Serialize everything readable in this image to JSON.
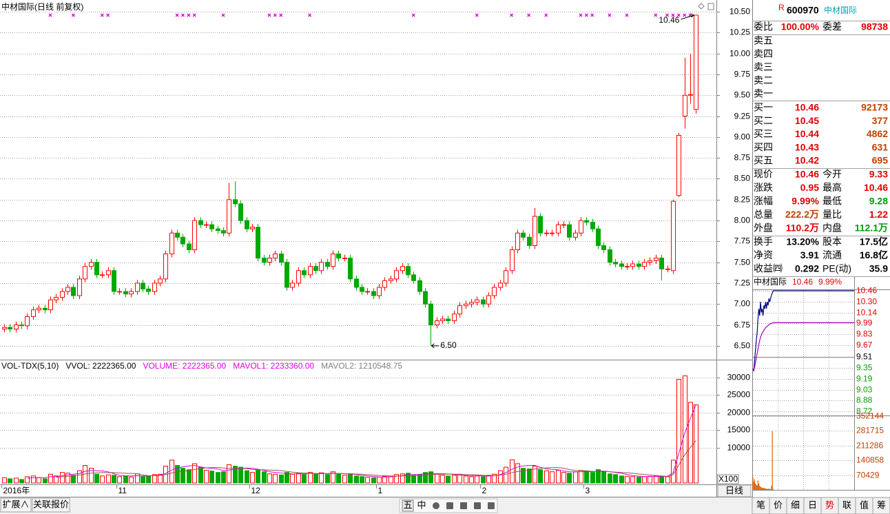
{
  "chart_data": {
    "type": "candlestick",
    "title": "中材国际(日线 前复权)",
    "categories": [
      "2016年",
      null,
      null,
      null,
      null,
      null,
      null,
      null,
      null,
      null,
      null,
      null,
      null,
      null,
      null,
      null,
      null,
      null,
      null,
      null,
      "11",
      null,
      null,
      null,
      null,
      null,
      null,
      null,
      null,
      null,
      null,
      null,
      null,
      null,
      null,
      null,
      null,
      null,
      null,
      null,
      null,
      null,
      null,
      "12",
      null,
      null,
      null,
      null,
      null,
      null,
      null,
      null,
      null,
      null,
      null,
      null,
      null,
      null,
      null,
      null,
      null,
      null,
      null,
      null,
      null,
      "1",
      null,
      null,
      null,
      null,
      null,
      null,
      null,
      null,
      null,
      null,
      null,
      null,
      null,
      null,
      null,
      null,
      null,
      "2",
      null,
      null,
      null,
      null,
      null,
      null,
      null,
      null,
      null,
      null,
      null,
      null,
      null,
      null,
      null,
      null,
      null,
      "3",
      null,
      null,
      null,
      null,
      null,
      null,
      null,
      null,
      null,
      null,
      null,
      null,
      null,
      null,
      null,
      null,
      null,
      null,
      null
    ],
    "open": [
      6.7,
      6.72,
      6.7,
      6.75,
      6.74,
      6.85,
      6.93,
      6.95,
      6.93,
      7.05,
      7.08,
      7.15,
      7.2,
      7.1,
      7.3,
      7.45,
      7.5,
      7.35,
      7.35,
      7.4,
      7.15,
      7.15,
      7.12,
      7.15,
      7.25,
      7.18,
      7.15,
      7.25,
      7.3,
      7.6,
      7.85,
      7.8,
      7.72,
      7.65,
      8.0,
      7.95,
      7.95,
      7.9,
      7.88,
      7.85,
      8.25,
      8.2,
      8.0,
      7.9,
      7.92,
      7.55,
      7.5,
      7.55,
      7.6,
      7.5,
      7.2,
      7.25,
      7.4,
      7.35,
      7.45,
      7.4,
      7.5,
      7.45,
      7.6,
      7.55,
      7.55,
      7.3,
      7.2,
      7.15,
      7.15,
      7.1,
      7.2,
      7.28,
      7.3,
      7.4,
      7.45,
      7.35,
      7.28,
      7.15,
      7.0,
      6.75,
      6.8,
      6.82,
      6.8,
      6.88,
      6.98,
      7.0,
      7.02,
      7.05,
      7.0,
      7.1,
      7.2,
      7.25,
      7.4,
      7.65,
      7.85,
      7.8,
      7.7,
      8.05,
      7.85,
      7.85,
      7.85,
      7.95,
      7.95,
      7.8,
      7.85,
      8.0,
      7.98,
      7.9,
      7.7,
      7.65,
      7.5,
      7.48,
      7.45,
      7.45,
      7.48,
      7.45,
      7.5,
      7.52,
      7.55,
      7.42,
      7.4,
      8.3,
      9.25,
      9.5,
      9.33
    ],
    "high": [
      6.76,
      6.76,
      6.79,
      6.79,
      6.89,
      6.97,
      6.99,
      6.99,
      7.09,
      7.12,
      7.19,
      7.24,
      7.24,
      7.34,
      7.49,
      7.54,
      7.54,
      7.39,
      7.44,
      7.44,
      7.19,
      7.19,
      7.19,
      7.29,
      7.29,
      7.22,
      7.29,
      7.34,
      7.64,
      7.89,
      7.89,
      7.84,
      7.76,
      8.04,
      8.04,
      7.99,
      7.99,
      7.94,
      7.92,
      8.45,
      8.47,
      8.24,
      8.04,
      7.96,
      7.96,
      7.59,
      7.59,
      7.64,
      7.64,
      7.54,
      7.29,
      7.44,
      7.44,
      7.49,
      7.49,
      7.54,
      7.54,
      7.64,
      7.64,
      7.59,
      7.59,
      7.34,
      7.24,
      7.19,
      7.19,
      7.24,
      7.32,
      7.34,
      7.44,
      7.49,
      7.49,
      7.39,
      7.32,
      7.19,
      7.04,
      6.84,
      6.86,
      6.86,
      6.92,
      7.02,
      7.04,
      7.06,
      7.09,
      7.09,
      7.14,
      7.24,
      7.29,
      7.44,
      7.69,
      7.89,
      7.89,
      7.84,
      8.15,
      8.09,
      7.89,
      7.89,
      7.99,
      7.99,
      7.99,
      7.89,
      8.04,
      8.04,
      8.02,
      7.94,
      7.74,
      7.69,
      7.54,
      7.52,
      7.49,
      7.52,
      7.52,
      7.54,
      7.56,
      7.59,
      7.59,
      7.46,
      8.25,
      9.05,
      9.95,
      10.0,
      10.46
    ],
    "low": [
      6.66,
      6.66,
      6.66,
      6.7,
      6.7,
      6.81,
      6.89,
      6.89,
      6.89,
      7.01,
      7.04,
      7.11,
      7.06,
      7.06,
      7.26,
      7.41,
      7.31,
      7.31,
      7.31,
      7.11,
      7.11,
      7.08,
      7.08,
      7.11,
      7.14,
      7.11,
      7.11,
      7.21,
      7.26,
      7.56,
      7.76,
      7.68,
      7.61,
      7.61,
      7.91,
      7.91,
      7.86,
      7.84,
      7.81,
      7.81,
      8.16,
      7.96,
      7.86,
      7.86,
      7.51,
      7.46,
      7.46,
      7.51,
      7.46,
      7.16,
      7.16,
      7.21,
      7.31,
      7.31,
      7.36,
      7.36,
      7.41,
      7.41,
      7.51,
      7.51,
      7.26,
      7.16,
      7.11,
      7.11,
      7.06,
      7.06,
      7.16,
      7.24,
      7.26,
      7.36,
      7.31,
      7.24,
      7.11,
      6.96,
      6.5,
      6.71,
      6.76,
      6.76,
      6.76,
      6.84,
      6.94,
      6.96,
      6.98,
      6.96,
      6.96,
      7.06,
      7.16,
      7.21,
      7.36,
      7.61,
      7.76,
      7.66,
      7.66,
      7.81,
      7.81,
      7.81,
      7.81,
      7.91,
      7.76,
      7.76,
      7.81,
      7.94,
      7.86,
      7.66,
      7.61,
      7.46,
      7.44,
      7.41,
      7.41,
      7.41,
      7.41,
      7.41,
      7.46,
      7.48,
      7.28,
      7.38,
      7.36,
      8.28,
      9.1,
      9.4,
      9.28
    ],
    "close": [
      6.72,
      6.7,
      6.75,
      6.74,
      6.85,
      6.93,
      6.95,
      6.93,
      7.05,
      7.08,
      7.15,
      7.2,
      7.1,
      7.3,
      7.45,
      7.5,
      7.35,
      7.35,
      7.4,
      7.15,
      7.15,
      7.12,
      7.15,
      7.25,
      7.18,
      7.15,
      7.25,
      7.3,
      7.6,
      7.85,
      7.8,
      7.72,
      7.65,
      8.0,
      7.95,
      7.95,
      7.9,
      7.88,
      7.85,
      8.25,
      8.2,
      8.0,
      7.9,
      7.92,
      7.55,
      7.5,
      7.55,
      7.6,
      7.5,
      7.2,
      7.25,
      7.4,
      7.35,
      7.45,
      7.4,
      7.5,
      7.45,
      7.6,
      7.55,
      7.55,
      7.3,
      7.2,
      7.15,
      7.15,
      7.1,
      7.2,
      7.28,
      7.3,
      7.4,
      7.45,
      7.35,
      7.28,
      7.15,
      7.0,
      6.75,
      6.8,
      6.82,
      6.8,
      6.88,
      6.98,
      7.0,
      7.02,
      7.05,
      7.0,
      7.1,
      7.2,
      7.25,
      7.4,
      7.65,
      7.85,
      7.8,
      7.7,
      8.05,
      7.85,
      7.85,
      7.85,
      7.95,
      7.95,
      7.8,
      7.85,
      8.0,
      7.98,
      7.9,
      7.7,
      7.65,
      7.5,
      7.48,
      7.45,
      7.45,
      7.48,
      7.45,
      7.5,
      7.52,
      7.55,
      7.42,
      7.42,
      8.23,
      9.02,
      9.5,
      9.51,
      10.46
    ],
    "up_color": "#ff0000",
    "down_color": "#00a800",
    "ylim": [
      6.35,
      10.6
    ],
    "yticks": [
      {
        "value": 6.5,
        "label": "6.50"
      },
      6.75,
      {
        "value": 7,
        "label": "7.00"
      },
      7.25,
      {
        "value": 7.5,
        "label": "7.50"
      },
      7.75,
      {
        "value": 8,
        "label": "8.00"
      },
      8.25,
      {
        "value": 8.5,
        "label": "8.50"
      },
      8.75,
      {
        "value": 9,
        "label": "9.00"
      },
      9.25,
      {
        "value": 9.5,
        "label": "9.50"
      },
      9.75,
      {
        "value": 10,
        "label": "10.00"
      },
      10.25,
      {
        "value": 10.5,
        "label": "10.50"
      }
    ],
    "grid": true,
    "high_label": "10.46",
    "low_label": "6.50",
    "signals": [
      8,
      12,
      17,
      18,
      30,
      31,
      32,
      33,
      38,
      46,
      47,
      48,
      53,
      71,
      82,
      88,
      91,
      94,
      100,
      101,
      102,
      105,
      108,
      113,
      115,
      116,
      117,
      118,
      119
    ],
    "signal_color": "#e000e0",
    "volume": {
      "header": [
        {
          "text": "VOL-TDX(5,10)",
          "color": "#000000"
        },
        {
          "text": "VVOL: 2222365.00",
          "color": "#000000"
        },
        {
          "text": "VOLUME: 2222365.00",
          "color": "#e000e0"
        },
        {
          "text": "MAVOL1: 2233360.00",
          "color": "#e000e0"
        },
        {
          "text": "MAVOL2: 1210548.75",
          "color": "#808080"
        }
      ],
      "values": [
        1500,
        1200,
        1400,
        1000,
        1800,
        2000,
        1500,
        1200,
        2500,
        2000,
        3000,
        2800,
        2200,
        3500,
        5000,
        4200,
        2500,
        2000,
        2300,
        2200,
        1800,
        2000,
        1700,
        2600,
        1800,
        2000,
        2400,
        2500,
        4800,
        6500,
        5000,
        4200,
        3800,
        5500,
        4500,
        3600,
        3400,
        3000,
        3200,
        5200,
        4800,
        4500,
        3500,
        3000,
        3800,
        3200,
        2600,
        2500,
        2300,
        3000,
        2500,
        2800,
        2400,
        3000,
        2600,
        2900,
        2400,
        3200,
        2500,
        2200,
        2400,
        2000,
        1800,
        1600,
        1500,
        1700,
        1900,
        2000,
        2400,
        2600,
        2800,
        2200,
        2400,
        3000,
        3200,
        2500,
        2200,
        2000,
        2200,
        2400,
        2000,
        1800,
        2000,
        1800,
        2200,
        2500,
        3500,
        4500,
        6600,
        5500,
        4200,
        4000,
        4800,
        3800,
        3500,
        3200,
        3600,
        3000,
        2800,
        3200,
        3600,
        3400,
        3000,
        3800,
        3200,
        2600,
        2400,
        2000,
        1900,
        1800,
        1700,
        1800,
        1900,
        2000,
        1900,
        1787,
        6500,
        29500,
        30500,
        22944,
        22224
      ],
      "ylim": [
        0,
        34900
      ],
      "yticks": [
        10000,
        15000,
        20000,
        25000,
        30000
      ],
      "unit_label": "X100",
      "ma": [
        {
          "period": 5,
          "color": "#e000e0"
        },
        {
          "period": 10,
          "color": "#a05050"
        }
      ]
    },
    "period_button": "日线"
  },
  "quote": {
    "badge": "R",
    "code": "600970",
    "name": "中材国际",
    "ratio": [
      "委比",
      "100.00%",
      "委差",
      "98738"
    ],
    "sell": [
      "卖五",
      "卖四",
      "卖三",
      "卖二",
      "卖一"
    ],
    "buy": [
      [
        "买一",
        "10.46",
        "92173"
      ],
      [
        "买二",
        "10.45",
        "377"
      ],
      [
        "买三",
        "10.44",
        "4862"
      ],
      [
        "买四",
        "10.43",
        "631"
      ],
      [
        "买五",
        "10.42",
        "695"
      ]
    ],
    "stats": [
      [
        "现价",
        "10.46",
        "今开",
        "9.33"
      ],
      [
        "涨跌",
        "0.95",
        "最高",
        "10.46"
      ],
      [
        "涨幅",
        "9.99%",
        "最低",
        "9.28"
      ],
      [
        "总量",
        "222.2万",
        "量比",
        "1.22"
      ],
      [
        "外盘",
        "110.2万",
        "内盘",
        "112.1万"
      ],
      [
        "换手",
        "13.20%",
        "股本",
        "17.5亿"
      ],
      [
        "净资",
        "3.91",
        "流通",
        "16.8亿"
      ],
      [
        "收益㈣",
        "0.292",
        "PE(动)",
        "35.9"
      ]
    ]
  },
  "intraday": {
    "type": "line",
    "title": "中材国际",
    "price": "10.46",
    "change": "9.99%",
    "x": [
      0,
      2,
      4,
      6,
      8,
      10,
      12,
      14,
      16,
      18,
      20,
      22,
      24,
      26,
      28,
      30,
      32,
      34,
      36,
      38,
      40,
      44,
      48,
      240
    ],
    "series": [
      {
        "color": "#000080",
        "values": [
          9.33,
          9.3,
          9.45,
          9.6,
          9.75,
          9.85,
          10.05,
          10.2,
          10.1,
          10.3,
          10.15,
          10.2,
          10.1,
          10.25,
          10.2,
          10.3,
          10.2,
          10.3,
          10.25,
          10.35,
          10.3,
          10.4,
          10.46,
          10.46
        ]
      },
      {
        "color": "#a000c0",
        "values": [
          9.33,
          9.32,
          9.36,
          9.42,
          9.49,
          9.55,
          9.62,
          9.69,
          9.74,
          9.79,
          9.82,
          9.85,
          9.87,
          9.89,
          9.91,
          9.93,
          9.94,
          9.95,
          9.96,
          9.97,
          9.98,
          9.99,
          10.0,
          10.0
        ]
      }
    ],
    "xlim": [
      0,
      240
    ],
    "ylim": [
      8.72,
      10.46
    ],
    "yticks": [
      10.46,
      {
        "value": 10.3,
        "label": "10.30"
      },
      10.14,
      9.99,
      9.83,
      9.67,
      9.51,
      9.35,
      9.19,
      9.03,
      8.88,
      8.72
    ],
    "volume": {
      "x": [
        0,
        2,
        4,
        6,
        8,
        10,
        12,
        14,
        16,
        18,
        20,
        22,
        24,
        26,
        28,
        30,
        32,
        34,
        36,
        38,
        40,
        42,
        44,
        46,
        48
      ],
      "values": [
        60000,
        40000,
        50000,
        30000,
        25000,
        20000,
        45000,
        30000,
        20000,
        15000,
        12000,
        10000,
        8000,
        10000,
        8000,
        6000,
        5000,
        4000,
        5000,
        6000,
        4000,
        3000,
        20000,
        280000,
        5000
      ],
      "color": "#e06000",
      "ylim": [
        0,
        352144
      ],
      "yticks": [
        352144,
        281715,
        211286,
        140858,
        70429
      ]
    }
  },
  "toolbar": {
    "left_tabs": [
      "扩展∧",
      "关联报价"
    ],
    "icons": [
      "五",
      "中"
    ],
    "right_tabs": [
      "笔",
      "价",
      "细",
      "日",
      "势",
      "联",
      "值",
      "筹"
    ],
    "active": "势"
  }
}
